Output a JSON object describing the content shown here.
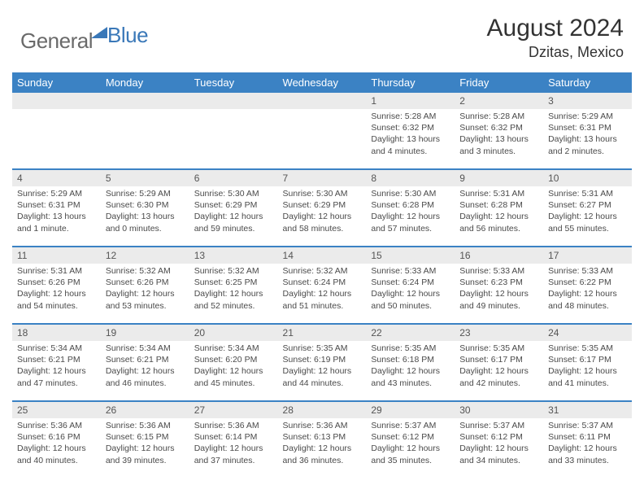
{
  "logo": {
    "general": "General",
    "blue": "Blue"
  },
  "title": "August 2024",
  "location": "Dzitas, Mexico",
  "daynames": [
    "Sunday",
    "Monday",
    "Tuesday",
    "Wednesday",
    "Thursday",
    "Friday",
    "Saturday"
  ],
  "colors": {
    "header_bg": "#3b82c4",
    "header_text": "#ffffff",
    "daynum_bg": "#ebebeb",
    "row_border": "#3b82c4",
    "body_text": "#4a4a4a",
    "logo_gray": "#6a6a6a",
    "logo_blue": "#3a78b8"
  },
  "weeks": [
    [
      {
        "n": "",
        "sr": "",
        "ss": "",
        "dl": ""
      },
      {
        "n": "",
        "sr": "",
        "ss": "",
        "dl": ""
      },
      {
        "n": "",
        "sr": "",
        "ss": "",
        "dl": ""
      },
      {
        "n": "",
        "sr": "",
        "ss": "",
        "dl": ""
      },
      {
        "n": "1",
        "sr": "Sunrise: 5:28 AM",
        "ss": "Sunset: 6:32 PM",
        "dl": "Daylight: 13 hours and 4 minutes."
      },
      {
        "n": "2",
        "sr": "Sunrise: 5:28 AM",
        "ss": "Sunset: 6:32 PM",
        "dl": "Daylight: 13 hours and 3 minutes."
      },
      {
        "n": "3",
        "sr": "Sunrise: 5:29 AM",
        "ss": "Sunset: 6:31 PM",
        "dl": "Daylight: 13 hours and 2 minutes."
      }
    ],
    [
      {
        "n": "4",
        "sr": "Sunrise: 5:29 AM",
        "ss": "Sunset: 6:31 PM",
        "dl": "Daylight: 13 hours and 1 minute."
      },
      {
        "n": "5",
        "sr": "Sunrise: 5:29 AM",
        "ss": "Sunset: 6:30 PM",
        "dl": "Daylight: 13 hours and 0 minutes."
      },
      {
        "n": "6",
        "sr": "Sunrise: 5:30 AM",
        "ss": "Sunset: 6:29 PM",
        "dl": "Daylight: 12 hours and 59 minutes."
      },
      {
        "n": "7",
        "sr": "Sunrise: 5:30 AM",
        "ss": "Sunset: 6:29 PM",
        "dl": "Daylight: 12 hours and 58 minutes."
      },
      {
        "n": "8",
        "sr": "Sunrise: 5:30 AM",
        "ss": "Sunset: 6:28 PM",
        "dl": "Daylight: 12 hours and 57 minutes."
      },
      {
        "n": "9",
        "sr": "Sunrise: 5:31 AM",
        "ss": "Sunset: 6:28 PM",
        "dl": "Daylight: 12 hours and 56 minutes."
      },
      {
        "n": "10",
        "sr": "Sunrise: 5:31 AM",
        "ss": "Sunset: 6:27 PM",
        "dl": "Daylight: 12 hours and 55 minutes."
      }
    ],
    [
      {
        "n": "11",
        "sr": "Sunrise: 5:31 AM",
        "ss": "Sunset: 6:26 PM",
        "dl": "Daylight: 12 hours and 54 minutes."
      },
      {
        "n": "12",
        "sr": "Sunrise: 5:32 AM",
        "ss": "Sunset: 6:26 PM",
        "dl": "Daylight: 12 hours and 53 minutes."
      },
      {
        "n": "13",
        "sr": "Sunrise: 5:32 AM",
        "ss": "Sunset: 6:25 PM",
        "dl": "Daylight: 12 hours and 52 minutes."
      },
      {
        "n": "14",
        "sr": "Sunrise: 5:32 AM",
        "ss": "Sunset: 6:24 PM",
        "dl": "Daylight: 12 hours and 51 minutes."
      },
      {
        "n": "15",
        "sr": "Sunrise: 5:33 AM",
        "ss": "Sunset: 6:24 PM",
        "dl": "Daylight: 12 hours and 50 minutes."
      },
      {
        "n": "16",
        "sr": "Sunrise: 5:33 AM",
        "ss": "Sunset: 6:23 PM",
        "dl": "Daylight: 12 hours and 49 minutes."
      },
      {
        "n": "17",
        "sr": "Sunrise: 5:33 AM",
        "ss": "Sunset: 6:22 PM",
        "dl": "Daylight: 12 hours and 48 minutes."
      }
    ],
    [
      {
        "n": "18",
        "sr": "Sunrise: 5:34 AM",
        "ss": "Sunset: 6:21 PM",
        "dl": "Daylight: 12 hours and 47 minutes."
      },
      {
        "n": "19",
        "sr": "Sunrise: 5:34 AM",
        "ss": "Sunset: 6:21 PM",
        "dl": "Daylight: 12 hours and 46 minutes."
      },
      {
        "n": "20",
        "sr": "Sunrise: 5:34 AM",
        "ss": "Sunset: 6:20 PM",
        "dl": "Daylight: 12 hours and 45 minutes."
      },
      {
        "n": "21",
        "sr": "Sunrise: 5:35 AM",
        "ss": "Sunset: 6:19 PM",
        "dl": "Daylight: 12 hours and 44 minutes."
      },
      {
        "n": "22",
        "sr": "Sunrise: 5:35 AM",
        "ss": "Sunset: 6:18 PM",
        "dl": "Daylight: 12 hours and 43 minutes."
      },
      {
        "n": "23",
        "sr": "Sunrise: 5:35 AM",
        "ss": "Sunset: 6:17 PM",
        "dl": "Daylight: 12 hours and 42 minutes."
      },
      {
        "n": "24",
        "sr": "Sunrise: 5:35 AM",
        "ss": "Sunset: 6:17 PM",
        "dl": "Daylight: 12 hours and 41 minutes."
      }
    ],
    [
      {
        "n": "25",
        "sr": "Sunrise: 5:36 AM",
        "ss": "Sunset: 6:16 PM",
        "dl": "Daylight: 12 hours and 40 minutes."
      },
      {
        "n": "26",
        "sr": "Sunrise: 5:36 AM",
        "ss": "Sunset: 6:15 PM",
        "dl": "Daylight: 12 hours and 39 minutes."
      },
      {
        "n": "27",
        "sr": "Sunrise: 5:36 AM",
        "ss": "Sunset: 6:14 PM",
        "dl": "Daylight: 12 hours and 37 minutes."
      },
      {
        "n": "28",
        "sr": "Sunrise: 5:36 AM",
        "ss": "Sunset: 6:13 PM",
        "dl": "Daylight: 12 hours and 36 minutes."
      },
      {
        "n": "29",
        "sr": "Sunrise: 5:37 AM",
        "ss": "Sunset: 6:12 PM",
        "dl": "Daylight: 12 hours and 35 minutes."
      },
      {
        "n": "30",
        "sr": "Sunrise: 5:37 AM",
        "ss": "Sunset: 6:12 PM",
        "dl": "Daylight: 12 hours and 34 minutes."
      },
      {
        "n": "31",
        "sr": "Sunrise: 5:37 AM",
        "ss": "Sunset: 6:11 PM",
        "dl": "Daylight: 12 hours and 33 minutes."
      }
    ]
  ]
}
